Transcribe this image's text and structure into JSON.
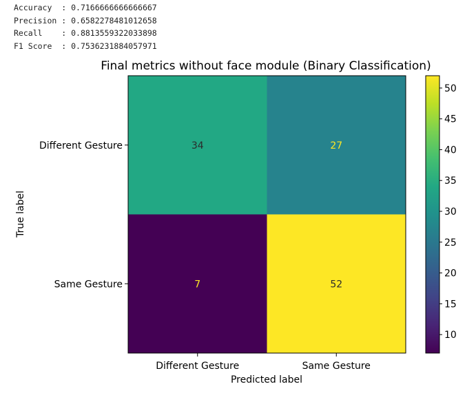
{
  "metrics": [
    {
      "label": "Accuracy ",
      "value": "0.7166666666666667"
    },
    {
      "label": "Precision",
      "value": "0.6582278481012658"
    },
    {
      "label": "Recall   ",
      "value": "0.8813559322033898"
    },
    {
      "label": "F1 Score ",
      "value": "0.7536231884057971"
    }
  ],
  "chart_data": {
    "type": "heatmap",
    "title": "Final metrics without face module (Binary Classification)",
    "xlabel": "Predicted label",
    "ylabel": "True label",
    "x_categories": [
      "Different Gesture",
      "Same Gesture"
    ],
    "y_categories": [
      "Different Gesture",
      "Same Gesture"
    ],
    "values": [
      [
        34,
        27
      ],
      [
        7,
        52
      ]
    ],
    "colormap": "viridis",
    "colorbar": {
      "min": 7,
      "max": 52,
      "ticks": [
        10,
        15,
        20,
        25,
        30,
        35,
        40,
        45,
        50
      ]
    }
  }
}
